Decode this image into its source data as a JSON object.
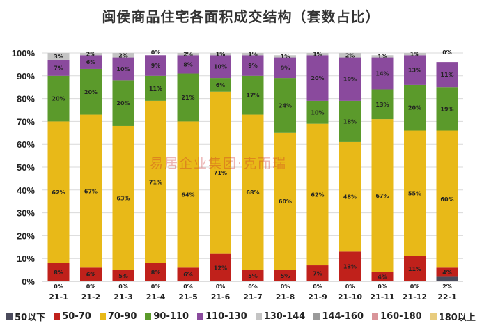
{
  "chart_data": {
    "type": "bar",
    "stacked": true,
    "title": "闽侯商品住宅各面积成交结构（套数占比）",
    "categories": [
      "21-1",
      "21-2",
      "21-3",
      "21-4",
      "21-5",
      "21-6",
      "21-7",
      "21-8",
      "21-9",
      "21-10",
      "21-11",
      "21-12",
      "22-1"
    ],
    "ylim": [
      0,
      100
    ],
    "yticks": [
      "0%",
      "10%",
      "20%",
      "30%",
      "40%",
      "50%",
      "60%",
      "70%",
      "80%",
      "90%",
      "100%"
    ],
    "grid": true,
    "legend_position": "bottom",
    "series": [
      {
        "name": "50以下",
        "color": "#4b4b5c",
        "values": [
          0,
          0,
          0,
          0,
          0,
          0,
          0,
          0,
          0,
          0,
          0,
          0,
          2
        ]
      },
      {
        "name": "50-70",
        "color": "#c0211b",
        "values": [
          8,
          6,
          5,
          8,
          6,
          12,
          5,
          5,
          7,
          13,
          4,
          11,
          4
        ]
      },
      {
        "name": "70-90",
        "color": "#e8b918",
        "values": [
          62,
          67,
          63,
          71,
          64,
          71,
          68,
          60,
          62,
          48,
          67,
          55,
          60
        ]
      },
      {
        "name": "90-110",
        "color": "#5b9a2b",
        "values": [
          20,
          20,
          20,
          11,
          21,
          6,
          17,
          24,
          10,
          18,
          13,
          20,
          19
        ]
      },
      {
        "name": "110-130",
        "color": "#8a4a9d",
        "values": [
          7,
          6,
          10,
          9,
          8,
          10,
          9,
          9,
          20,
          19,
          14,
          13,
          11
        ]
      },
      {
        "name": "130-144",
        "color": "#c4c4c4",
        "values": [
          3,
          2,
          2,
          0,
          2,
          1,
          1,
          1,
          1,
          2,
          1,
          1,
          0
        ]
      },
      {
        "name": "144-160",
        "color": "#9a9a9a",
        "values": [
          0,
          0,
          0,
          0,
          0,
          0,
          0,
          0,
          0,
          0,
          0,
          0,
          0
        ]
      },
      {
        "name": "160-180",
        "color": "#d9959a",
        "values": [
          0,
          0,
          0,
          0,
          0,
          0,
          0,
          0,
          0,
          0,
          0,
          0,
          0
        ]
      },
      {
        "name": "180以上",
        "color": "#e8cc7e",
        "values": [
          0,
          0,
          0,
          0,
          0,
          0,
          0,
          0,
          0,
          0,
          0,
          0,
          0
        ]
      }
    ]
  },
  "watermark": "易居企业集团·克而瑞"
}
